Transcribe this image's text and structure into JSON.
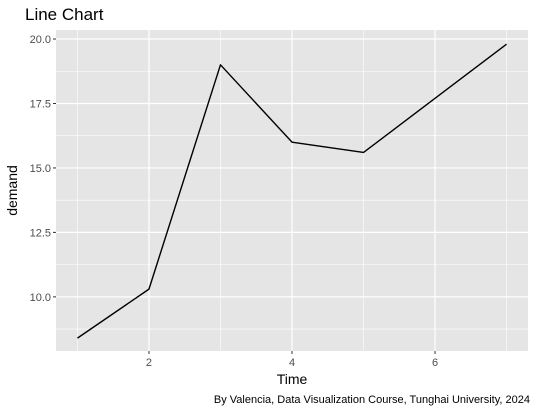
{
  "chart_data": {
    "type": "line",
    "title": "Line Chart",
    "xlabel": "Time",
    "ylabel": "demand",
    "caption": "By Valencia, Data Visualization Course, Tunghai University, 2024",
    "x": [
      1,
      2,
      3,
      4,
      5,
      6,
      7
    ],
    "y": [
      8.4,
      10.3,
      19.0,
      16.0,
      15.6,
      17.7,
      19.8
    ],
    "xlim": [
      0.7,
      7.3
    ],
    "ylim": [
      7.9,
      20.35
    ],
    "xticks": [
      2,
      4,
      6
    ],
    "xtick_labels": [
      "2",
      "4",
      "6"
    ],
    "yticks": [
      10,
      12.5,
      15,
      17.5,
      20
    ],
    "ytick_labels": [
      "10.0",
      "12.5",
      "15.0",
      "17.5",
      "20.0"
    ],
    "grid": true,
    "legend": "none",
    "colors": {
      "panel_background": "#e5e5e5",
      "grid": "#ffffff",
      "line": "#000000",
      "tick_label": "#4d4d4d",
      "tick_mark": "#333333"
    }
  }
}
